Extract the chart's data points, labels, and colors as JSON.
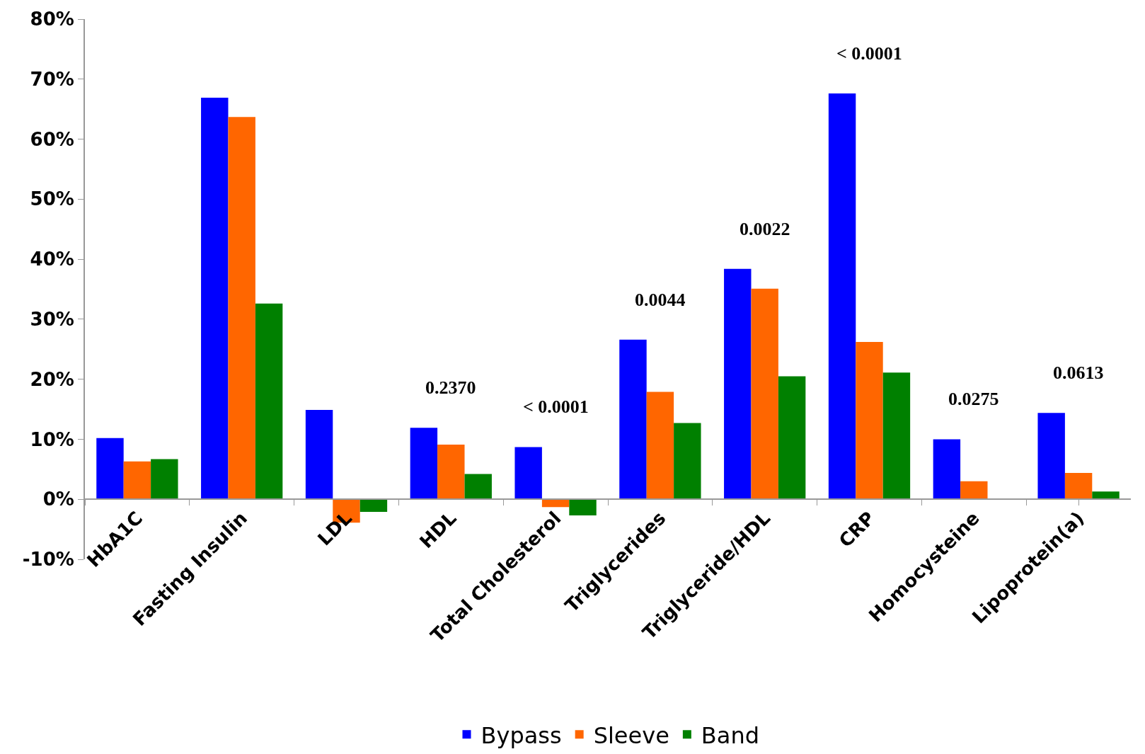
{
  "chart_data": {
    "type": "bar",
    "categories": [
      "HbA1C",
      "Fasting Insulin",
      "LDL",
      "HDL",
      "Total Cholesterol",
      "Triglycerides",
      "Triglyceride/HDL",
      "CRP",
      "Homocysteine",
      "Lipoprotein(a)"
    ],
    "series": [
      {
        "name": "Bypass",
        "color": "#0000ff",
        "values": [
          10.2,
          66.9,
          14.9,
          11.9,
          8.7,
          26.6,
          38.4,
          67.6,
          10.0,
          14.4
        ]
      },
      {
        "name": "Sleeve",
        "color": "#ff6600",
        "values": [
          6.3,
          63.7,
          -3.9,
          9.1,
          -1.3,
          17.9,
          35.1,
          26.2,
          3.0,
          4.4
        ]
      },
      {
        "name": "Band",
        "color": "#008000",
        "values": [
          6.7,
          32.6,
          -2.1,
          4.2,
          -2.7,
          12.7,
          20.5,
          21.1,
          null,
          1.3
        ]
      }
    ],
    "ylim": [
      -10,
      80
    ],
    "yticks": [
      {
        "value": -10,
        "label": "-10%"
      },
      {
        "value": 0,
        "label": "0%"
      },
      {
        "value": 10,
        "label": "10%"
      },
      {
        "value": 20,
        "label": "20%"
      },
      {
        "value": 30,
        "label": "30%"
      },
      {
        "value": 40,
        "label": "40%"
      },
      {
        "value": 50,
        "label": "50%"
      },
      {
        "value": 60,
        "label": "60%"
      },
      {
        "value": 70,
        "label": "70%"
      },
      {
        "value": 80,
        "label": "80%"
      }
    ],
    "annotations": [
      "0.2370",
      "< 0.0001",
      "0.0044",
      "0.0022",
      "< 0.0001",
      "0.0275",
      "0.0613"
    ],
    "grid": false,
    "legend": "bottom"
  }
}
